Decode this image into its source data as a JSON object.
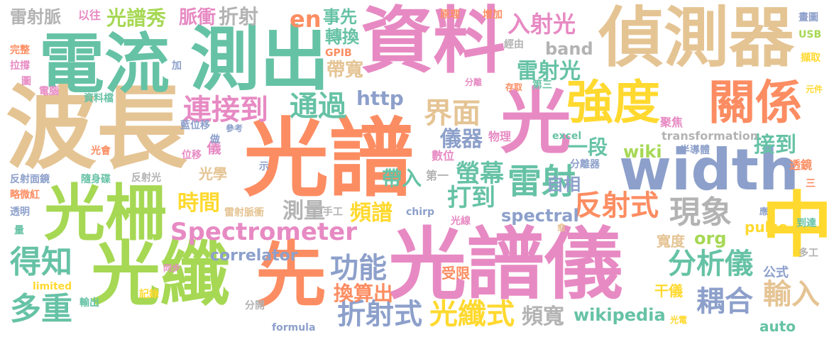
{
  "palette": {
    "orange": "#fc8d62",
    "pink": "#e78ac3",
    "green": "#66c2a5",
    "blue": "#8da0cb",
    "lime": "#a6d854",
    "yellow": "#ffd92f",
    "tan": "#e5c494",
    "grey": "#b3b3b3"
  },
  "words": [
    {
      "text": "光譜",
      "color": "#fc8d62"
    },
    {
      "text": "光譜儀",
      "color": "#e78ac3"
    },
    {
      "text": "資料",
      "color": "#e78ac3"
    },
    {
      "text": "波長",
      "color": "#e5c494"
    },
    {
      "text": "偵測器",
      "color": "#e5c494"
    },
    {
      "text": "width",
      "color": "#8da0cb"
    },
    {
      "text": "電流",
      "color": "#66c2a5"
    },
    {
      "text": "測出",
      "color": "#66c2a5"
    },
    {
      "text": "光纖",
      "color": "#a6d854"
    },
    {
      "text": "光柵",
      "color": "#a6d854"
    },
    {
      "text": "光",
      "color": "#e78ac3"
    },
    {
      "text": "先",
      "color": "#fc8d62"
    },
    {
      "text": "中",
      "color": "#ffd92f"
    },
    {
      "text": "強度",
      "color": "#ffd92f"
    },
    {
      "text": "關係",
      "color": "#fc8d62"
    },
    {
      "text": "Spectrometer",
      "color": "#e78ac3"
    },
    {
      "text": "得知",
      "color": "#66c2a5"
    },
    {
      "text": "多重",
      "color": "#66c2a5"
    },
    {
      "text": "連接到",
      "color": "#e78ac3"
    },
    {
      "text": "通過",
      "color": "#66c2a5"
    },
    {
      "text": "雷射",
      "color": "#66c2a5"
    },
    {
      "text": "界面",
      "color": "#e5c494"
    },
    {
      "text": "功能",
      "color": "#8da0cb"
    },
    {
      "text": "現象",
      "color": "#b3b3b3"
    },
    {
      "text": "分析儀",
      "color": "#66c2a5"
    },
    {
      "text": "耦合",
      "color": "#8da0cb"
    },
    {
      "text": "折射式",
      "color": "#8da0cb"
    },
    {
      "text": "光纖式",
      "color": "#ffd92f"
    },
    {
      "text": "反射式",
      "color": "#fc8d62"
    },
    {
      "text": "儀器",
      "color": "#8da0cb"
    },
    {
      "text": "螢幕",
      "color": "#66c2a5"
    },
    {
      "text": "打到",
      "color": "#66c2a5"
    },
    {
      "text": "時間",
      "color": "#ffd92f"
    },
    {
      "text": "測量",
      "color": "#b3b3b3"
    },
    {
      "text": "頻譜",
      "color": "#ffd92f"
    },
    {
      "text": "換算出",
      "color": "#fc8d62"
    },
    {
      "text": "頻寬",
      "color": "#b3b3b3"
    },
    {
      "text": "輸入",
      "color": "#e5c494"
    },
    {
      "text": "入射光",
      "color": "#e78ac3"
    },
    {
      "text": "雷射光",
      "color": "#66c2a5"
    },
    {
      "text": "帶寬",
      "color": "#e5c494"
    },
    {
      "text": "轉換",
      "color": "#66c2a5"
    },
    {
      "text": "事先",
      "color": "#66c2a5"
    },
    {
      "text": "http",
      "color": "#8da0cb"
    },
    {
      "text": "band",
      "color": "#b3b3b3"
    },
    {
      "text": "en",
      "color": "#fc8d62"
    },
    {
      "text": "光譜秀",
      "color": "#a6d854"
    },
    {
      "text": "脈衝",
      "color": "#e78ac3"
    },
    {
      "text": "折射",
      "color": "#b3b3b3"
    },
    {
      "text": "雷射脈",
      "color": "#b3b3b3"
    },
    {
      "text": "以往",
      "color": "#e78ac3"
    },
    {
      "text": "一段",
      "color": "#66c2a5"
    },
    {
      "text": "接到",
      "color": "#66c2a5"
    },
    {
      "text": "wiki",
      "color": "#a6d854"
    },
    {
      "text": "帶入",
      "color": "#66c2a5"
    },
    {
      "text": "自相",
      "color": "#8da0cb"
    },
    {
      "text": "spectral",
      "color": "#8da0cb"
    },
    {
      "text": "correlator",
      "color": "#8da0cb"
    },
    {
      "text": "org",
      "color": "#a6d854"
    },
    {
      "text": "pulse",
      "color": "#ffd92f"
    },
    {
      "text": "wikipedia",
      "color": "#66c2a5"
    },
    {
      "text": "auto",
      "color": "#66c2a5"
    },
    {
      "text": "寬度",
      "color": "#e5c494"
    },
    {
      "text": "公式",
      "color": "#8da0cb"
    },
    {
      "text": "干儀",
      "color": "#ffd92f"
    },
    {
      "text": "受限",
      "color": "#fc8d62"
    },
    {
      "text": "光學",
      "color": "#e5c494"
    },
    {
      "text": "儀",
      "color": "#e78ac3"
    },
    {
      "text": "第一",
      "color": "#b3b3b3"
    },
    {
      "text": "數位",
      "color": "#e78ac3"
    },
    {
      "text": "物理",
      "color": "#e78ac3"
    },
    {
      "text": "excel",
      "color": "#66c2a5"
    },
    {
      "text": "transformation",
      "color": "#b3b3b3"
    },
    {
      "text": "半導體",
      "color": "#8da0cb"
    },
    {
      "text": "分離器",
      "color": "#8da0cb"
    },
    {
      "text": "透鏡",
      "color": "#fc8d62"
    },
    {
      "text": "聚焦",
      "color": "#e78ac3"
    },
    {
      "text": "元件",
      "color": "#ffd92f"
    },
    {
      "text": "存取",
      "color": "#fc8d62"
    },
    {
      "text": "分離",
      "color": "#e78ac3"
    },
    {
      "text": "第三",
      "color": "#66c2a5"
    },
    {
      "text": "經由",
      "color": "#b3b3b3"
    },
    {
      "text": "GPIB",
      "color": "#fc8d62"
    },
    {
      "text": "原理",
      "color": "#fc8d62"
    },
    {
      "text": "增加",
      "color": "#fc8d62"
    },
    {
      "text": "畫圖",
      "color": "#8da0cb"
    },
    {
      "text": "USB",
      "color": "#a6d854"
    },
    {
      "text": "擷取",
      "color": "#ffd92f"
    },
    {
      "text": "完整",
      "color": "#fc8d62"
    },
    {
      "text": "拉撐",
      "color": "#e78ac3"
    },
    {
      "text": "加",
      "color": "#8da0cb"
    },
    {
      "text": "圖",
      "color": "#e78ac3"
    },
    {
      "text": "電腦",
      "color": "#e78ac3"
    },
    {
      "text": "資料檔",
      "color": "#66c2a5"
    },
    {
      "text": "參考",
      "color": "#8da0cb"
    },
    {
      "text": "藍位移",
      "color": "#8da0cb"
    },
    {
      "text": "做",
      "color": "#8da0cb"
    },
    {
      "text": "光會",
      "color": "#fc8d62"
    },
    {
      "text": "位移",
      "color": "#e78ac3"
    },
    {
      "text": "示",
      "color": "#8da0cb"
    },
    {
      "text": "反射面鏡",
      "color": "#8da0cb"
    },
    {
      "text": "隨身碟",
      "color": "#66c2a5"
    },
    {
      "text": "反射光",
      "color": "#b3b3b3"
    },
    {
      "text": "略微紅",
      "color": "#fc8d62"
    },
    {
      "text": "透明",
      "color": "#8da0cb"
    },
    {
      "text": "量",
      "color": "#66c2a5"
    },
    {
      "text": "雷射脈衝",
      "color": "#e5c494"
    },
    {
      "text": "手工",
      "color": "#b3b3b3"
    },
    {
      "text": "chirp",
      "color": "#8da0cb"
    },
    {
      "text": "光線",
      "color": "#e78ac3"
    },
    {
      "text": "同步",
      "color": "#e78ac3"
    },
    {
      "text": "limited",
      "color": "#ffd92f"
    },
    {
      "text": "記錄",
      "color": "#ffd92f"
    },
    {
      "text": "輸出",
      "color": "#66c2a5"
    },
    {
      "text": "分開",
      "color": "#b3b3b3"
    },
    {
      "text": "formula",
      "color": "#8da0cb"
    },
    {
      "text": "光電",
      "color": "#ffd92f"
    },
    {
      "text": "到達",
      "color": "#66c2a5"
    },
    {
      "text": "多工",
      "color": "#b3b3b3"
    },
    {
      "text": "應",
      "color": "#8da0cb"
    },
    {
      "text": "愈",
      "color": "#e5c494"
    },
    {
      "text": "三",
      "color": "#fc8d62"
    }
  ]
}
